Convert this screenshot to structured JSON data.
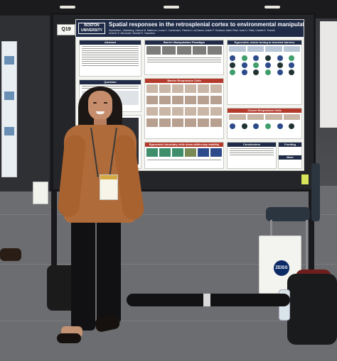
{
  "scene": {
    "description_hidden": ""
  },
  "poster": {
    "board_number": "Q19",
    "logo_text_line1": "BOSTON",
    "logo_text_line2": "UNIVERSITY",
    "title": "Spatial responses in the retrosplenial cortex to environmental manipulations",
    "authors": "Samantha L. Malmberg, Gianna M. Matteson, Lucas C. Carstensen, Patrick A. LaChance, Austin P. Goddard, Mahir Patel, Kush D. Patel, Camille E. Everett, Andrew S. Alexander, Michael E. Hasselmo",
    "sections": {
      "abstract": "Abstract",
      "barrier_manipulation": "Barrier Manipulation Paradigm",
      "egocentric_vector": "Egocentric vector tuning to inserted barriers",
      "question": "Question",
      "barrier_responsive": "Barrier Responsive Cells",
      "corner_responsive": "Corner Responsive Cells",
      "egocentric_boundary": "Egocentric boundary cells show within-day stability",
      "conclusions": "Conclusions",
      "funding": "Funding",
      "more_questions": "More Questions?"
    }
  },
  "bag_logo": "ZEISS",
  "colors": {
    "poster_header": "#1f2b47",
    "sweater": "#b06b3a",
    "board": "#242529"
  }
}
